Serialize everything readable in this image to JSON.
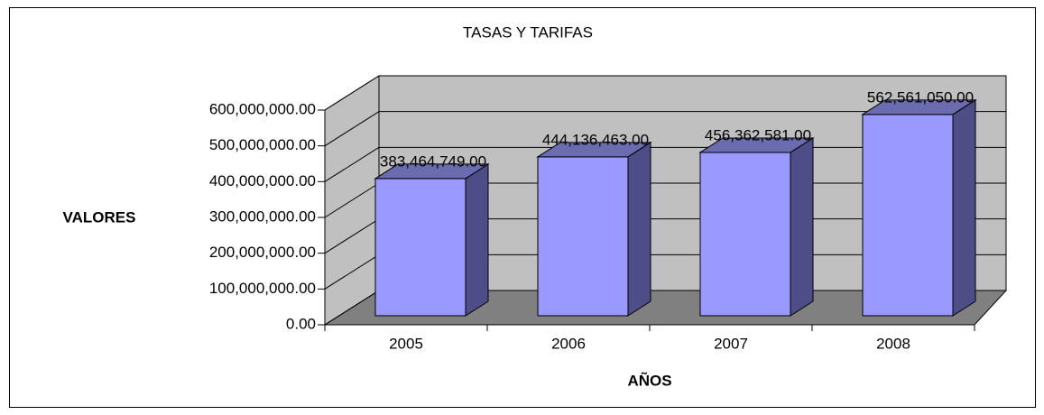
{
  "chart_data": {
    "type": "bar3d",
    "title": "TASAS Y TARIFAS",
    "y_label": "VALORES",
    "x_label": "AÑOS",
    "categories": [
      "2005",
      "2006",
      "2007",
      "2008"
    ],
    "values": [
      383464749,
      444136463,
      456362581,
      562561050
    ],
    "value_labels": [
      "383,464,749.00",
      "444,136,463.00",
      "456,362,581.00",
      "562,561,050.00"
    ],
    "color": "#9999ff",
    "ylim": [
      0,
      600000000
    ],
    "yticks": [
      {
        "value": 0,
        "label": "0.00"
      },
      {
        "value": 100000000,
        "label": "100,000,000.00"
      },
      {
        "value": 200000000,
        "label": "200,000,000.00"
      },
      {
        "value": 300000000,
        "label": "300,000,000.00"
      },
      {
        "value": 400000000,
        "label": "400,000,000.00"
      },
      {
        "value": 500000000,
        "label": "500,000,000.00"
      },
      {
        "value": 600000000,
        "label": "600,000,000.00"
      }
    ],
    "grid": true
  }
}
